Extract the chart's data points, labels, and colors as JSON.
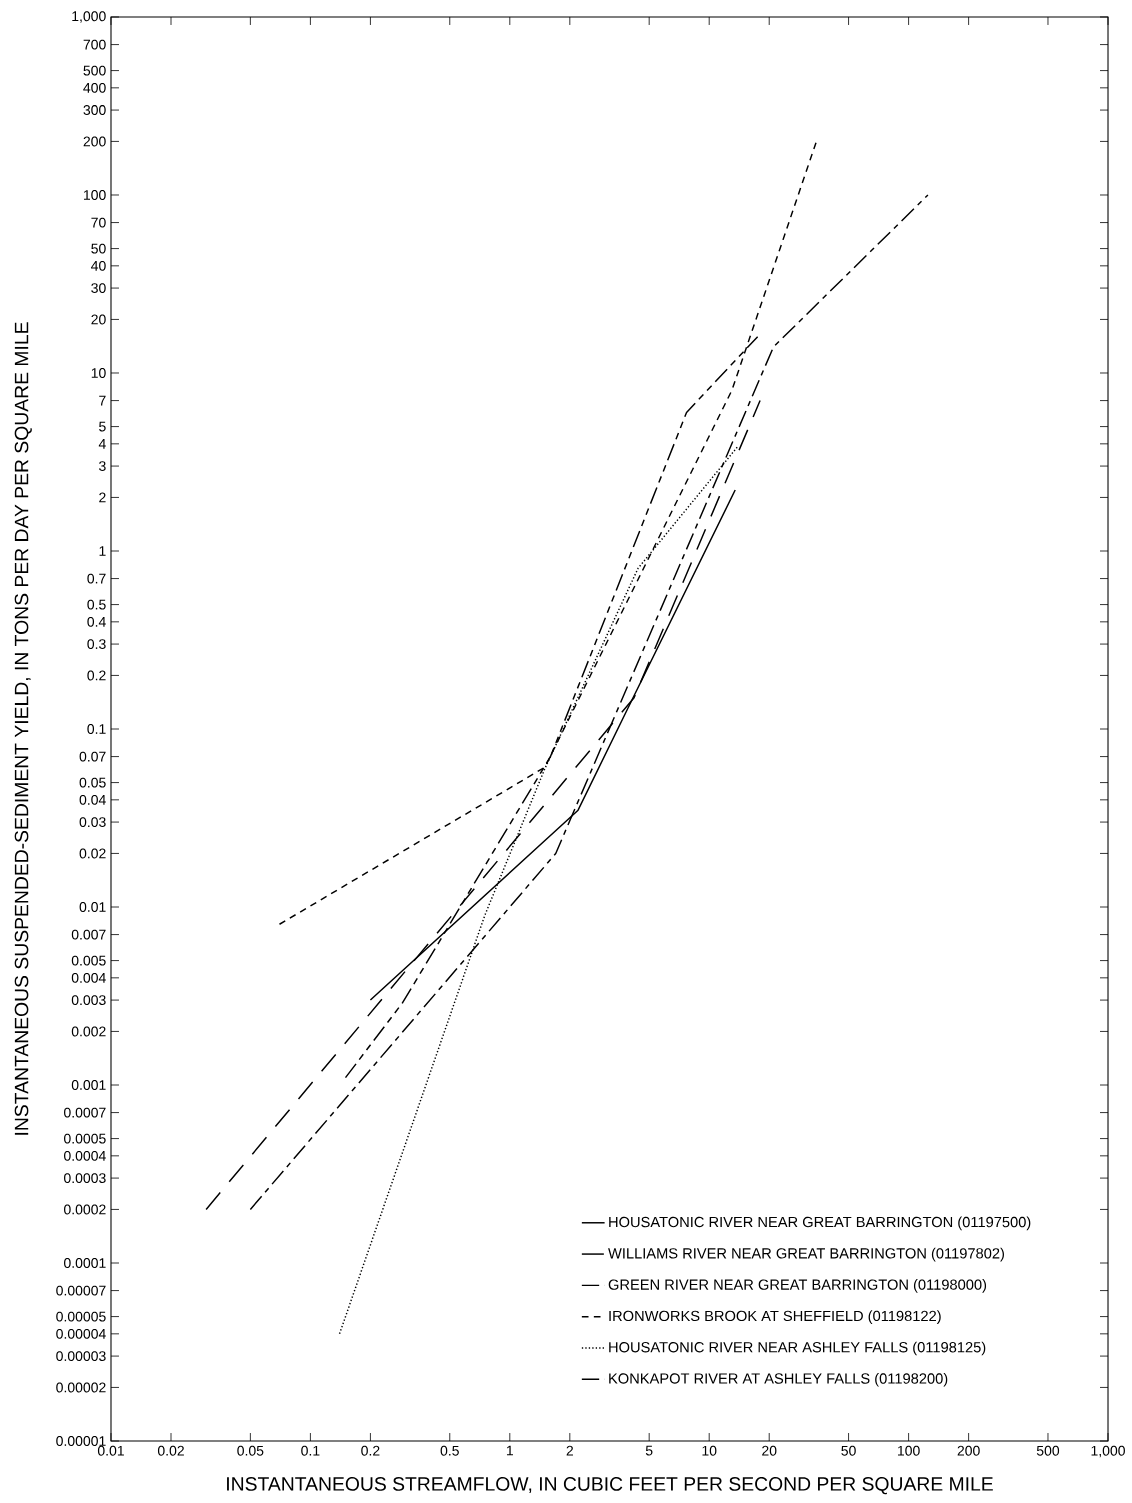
{
  "chart_data": {
    "type": "line",
    "xlabel": "INSTANTANEOUS STREAMFLOW, IN CUBIC FEET PER SECOND PER SQUARE MILE",
    "ylabel": "INSTANTANEOUS SUSPENDED-SEDIMENT YIELD, IN TONS PER DAY PER SQUARE MILE",
    "log": "xy",
    "xlim": [
      0.01,
      1000
    ],
    "ylim": [
      1e-05,
      1000
    ],
    "xticks": [
      0.01,
      0.02,
      0.05,
      0.1,
      0.2,
      0.5,
      1,
      2,
      5,
      10,
      20,
      50,
      100,
      200,
      500,
      {
        "value": 1000,
        "label": "1,000"
      }
    ],
    "yticks": [
      {
        "value": 1e-05,
        "label": "0.00001"
      },
      {
        "value": 2e-05,
        "label": "0.00002"
      },
      {
        "value": 3e-05,
        "label": "0.00003"
      },
      {
        "value": 4e-05,
        "label": "0.00004"
      },
      {
        "value": 5e-05,
        "label": "0.00005"
      },
      {
        "value": 7e-05,
        "label": "0.00007"
      },
      0.0001,
      0.0002,
      0.0003,
      0.0004,
      0.0005,
      0.0007,
      0.001,
      0.002,
      0.003,
      0.004,
      0.005,
      0.007,
      0.01,
      0.02,
      0.03,
      0.04,
      0.05,
      0.07,
      0.1,
      0.2,
      0.3,
      0.4,
      0.5,
      0.7,
      1,
      2,
      3,
      4,
      5,
      7,
      10,
      20,
      30,
      40,
      50,
      70,
      100,
      200,
      300,
      400,
      500,
      700,
      {
        "value": 1000,
        "label": "1,000"
      }
    ],
    "legend": "bottom right",
    "series": [
      {
        "name": "HOUSATONIC RIVER NEAR GREAT BARRINGTON (01197500)",
        "color": "#000000",
        "line_style": "solid",
        "x": [
          0.2,
          2.2,
          3.9,
          13.5
        ],
        "values": [
          0.003,
          0.035,
          0.13,
          2.2
        ]
      },
      {
        "name": "WILLIAMS RIVER NEAR GREAT BARRINGTON (01197802)",
        "color": "#000000",
        "line_style": "long dashed",
        "x": [
          0.03,
          4.2,
          18
        ],
        "values": [
          0.0002,
          0.15,
          7
        ]
      },
      {
        "name": "GREEN RIVER NEAR GREAT BARRINGTON (01198000)",
        "color": "#000000",
        "line_style": "dash dot",
        "x": [
          0.05,
          1.7,
          21,
          125
        ],
        "values": [
          0.0002,
          0.02,
          14,
          100
        ]
      },
      {
        "name": "IRONWORKS BROOK AT SHEFFIELD (01198122)",
        "color": "#000000",
        "line_style": "dashed",
        "x": [
          0.07,
          1.5,
          13,
          35
        ],
        "values": [
          0.008,
          0.061,
          8,
          210
        ]
      },
      {
        "name": "HOUSATONIC RIVER NEAR ASHLEY FALLS (01198125)",
        "color": "#000000",
        "line_style": "dotted",
        "x": [
          0.14,
          0.75,
          1.5,
          4.4,
          14
        ],
        "values": [
          4e-05,
          0.009,
          0.06,
          0.8,
          3.9
        ]
      },
      {
        "name": "KONKAPOT RIVER AT ASHLEY FALLS (01198200)",
        "color": "#000000",
        "line_style": "dash dot dot",
        "x": [
          0.15,
          0.29,
          1.6,
          7.7,
          17.5
        ],
        "values": [
          0.0011,
          0.0029,
          0.07,
          6,
          16
        ]
      }
    ]
  }
}
